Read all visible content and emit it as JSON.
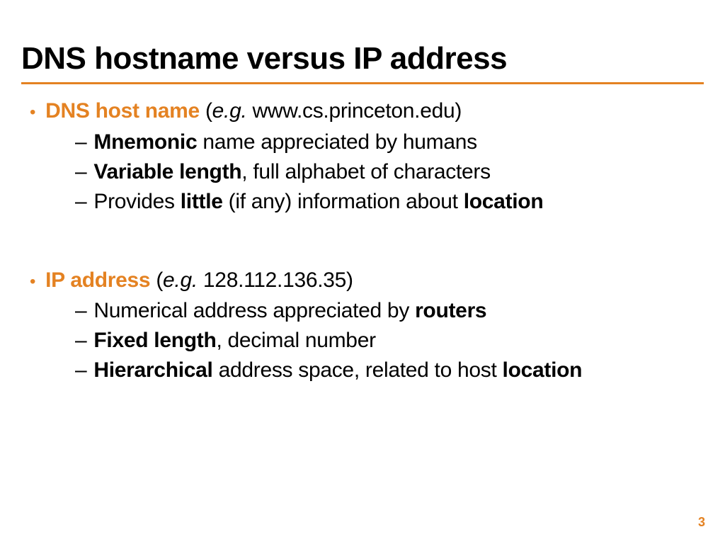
{
  "slide": {
    "title": "DNS hostname versus IP address",
    "page_number": "3",
    "colors": {
      "accent": "#e48222",
      "text": "#000000",
      "background": "#ffffff"
    },
    "sections": [
      {
        "header_bold": "DNS host name",
        "header_eg_label": "e.g.",
        "header_example": " www.cs.princeton.edu)",
        "subs": [
          {
            "lead_bold": "Mnemonic",
            "rest": " name appreciated by humans"
          },
          {
            "lead_bold": "Variable length",
            "rest": ", full alphabet of characters"
          },
          {
            "pre": "Provides ",
            "mid_bold": "little",
            "mid_rest": " (if any) information about ",
            "end_bold": "location"
          }
        ]
      },
      {
        "header_bold": "IP address",
        "header_eg_label": "e.g.",
        "header_example": " 128.112.136.35)",
        "subs": [
          {
            "pre": "Numerical address appreciated by ",
            "end_bold": "routers"
          },
          {
            "lead_bold": "Fixed length",
            "rest": ", decimal number"
          },
          {
            "lead_bold": "Hierarchical",
            "mid_rest": " address space, related to host ",
            "end_bold": "location"
          }
        ]
      }
    ]
  }
}
